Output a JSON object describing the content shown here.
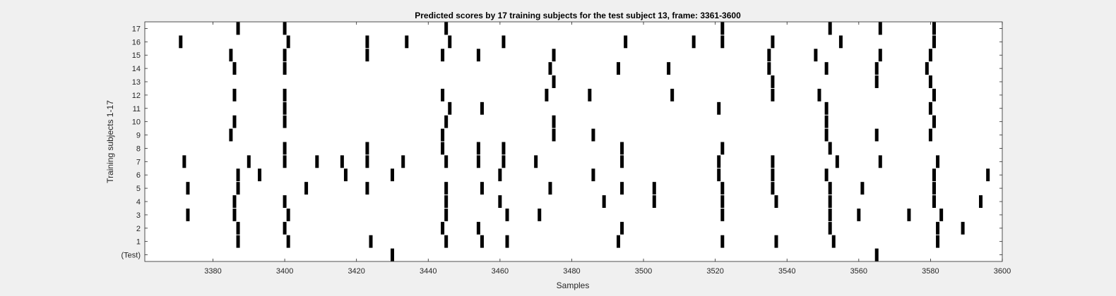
{
  "chart_data": {
    "type": "scatter",
    "title": "Predicted scores by 17 training subjects for the test subject 13, frame: 3361-3600",
    "xlabel": "Samples",
    "ylabel": "Training subjects 1-17",
    "xlim": [
      3361,
      3600
    ],
    "xticks": [
      3380,
      3400,
      3420,
      3440,
      3460,
      3480,
      3500,
      3520,
      3540,
      3560,
      3580,
      3600
    ],
    "yticks": [
      "(Test)",
      "1",
      "2",
      "3",
      "4",
      "5",
      "6",
      "7",
      "8",
      "9",
      "10",
      "11",
      "12",
      "13",
      "14",
      "15",
      "16",
      "17"
    ],
    "grid": false,
    "legend": "none",
    "marker_color": "#000000",
    "rows": [
      {
        "label": "(Test)",
        "x": [
          3430,
          3565
        ]
      },
      {
        "label": "1",
        "x": [
          3387,
          3401,
          3424,
          3445,
          3455,
          3462,
          3493,
          3522,
          3537,
          3553,
          3582
        ]
      },
      {
        "label": "2",
        "x": [
          3387,
          3400,
          3444,
          3454,
          3494,
          3552,
          3582,
          3589
        ]
      },
      {
        "label": "3",
        "x": [
          3373,
          3386,
          3401,
          3445,
          3462,
          3471,
          3522,
          3552,
          3560,
          3574,
          3583
        ]
      },
      {
        "label": "4",
        "x": [
          3386,
          3400,
          3445,
          3460,
          3489,
          3503,
          3522,
          3537,
          3552,
          3581,
          3594
        ]
      },
      {
        "label": "5",
        "x": [
          3373,
          3387,
          3406,
          3423,
          3445,
          3455,
          3474,
          3494,
          3503,
          3522,
          3536,
          3552,
          3561,
          3581
        ]
      },
      {
        "label": "6",
        "x": [
          3387,
          3393,
          3417,
          3430,
          3460,
          3486,
          3521,
          3536,
          3551,
          3581,
          3596
        ]
      },
      {
        "label": "7",
        "x": [
          3372,
          3390,
          3400,
          3409,
          3416,
          3423,
          3433,
          3445,
          3454,
          3461,
          3470,
          3494,
          3521,
          3536,
          3554,
          3566,
          3582
        ]
      },
      {
        "label": "8",
        "x": [
          3400,
          3423,
          3444,
          3454,
          3461,
          3494,
          3522,
          3552
        ]
      },
      {
        "label": "9",
        "x": [
          3385,
          3444,
          3475,
          3486,
          3551,
          3565,
          3580
        ]
      },
      {
        "label": "10",
        "x": [
          3386,
          3400,
          3445,
          3475,
          3551,
          3581
        ]
      },
      {
        "label": "11",
        "x": [
          3400,
          3446,
          3455,
          3521,
          3551,
          3580
        ]
      },
      {
        "label": "12",
        "x": [
          3386,
          3400,
          3444,
          3473,
          3485,
          3508,
          3536,
          3549,
          3581
        ]
      },
      {
        "label": "13",
        "x": [
          3475,
          3536,
          3565,
          3580
        ]
      },
      {
        "label": "14",
        "x": [
          3386,
          3400,
          3474,
          3493,
          3507,
          3535,
          3551,
          3565,
          3579
        ]
      },
      {
        "label": "15",
        "x": [
          3385,
          3400,
          3423,
          3444,
          3454,
          3475,
          3535,
          3548,
          3566,
          3580
        ]
      },
      {
        "label": "16",
        "x": [
          3371,
          3401,
          3423,
          3434,
          3446,
          3461,
          3495,
          3514,
          3522,
          3536,
          3555,
          3581
        ]
      },
      {
        "label": "17",
        "x": [
          3387,
          3400,
          3445,
          3522,
          3552,
          3566,
          3581
        ]
      }
    ]
  }
}
